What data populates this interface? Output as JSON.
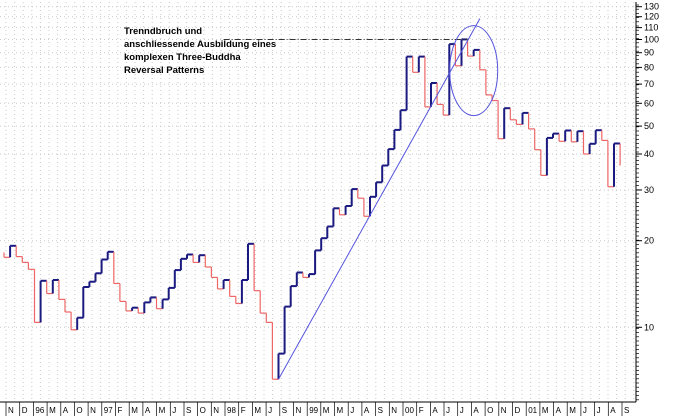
{
  "chart_data": {
    "type": "line",
    "subtype": "three-line-break (kagi-style step chart)",
    "title": "",
    "xlabel": "",
    "ylabel": "",
    "y_scale": "log",
    "ylim": [
      5.5,
      135
    ],
    "y_ticks": [
      10,
      20,
      30,
      40,
      50,
      60,
      70,
      80,
      90,
      100,
      110,
      120,
      130
    ],
    "y_tick_labels": [
      "10",
      "20",
      "30",
      "40",
      "50",
      "60",
      "70",
      "80",
      "90",
      "100",
      "110",
      "120",
      "130"
    ],
    "x_tick_labels": [
      "N",
      "D",
      "96",
      "M",
      "A",
      "O",
      "N",
      "97",
      "F",
      "M",
      "A",
      "M",
      "J",
      "S",
      "O",
      "N",
      "98",
      "F",
      "M",
      "J",
      "S",
      "N",
      "99",
      "M",
      "M",
      "J",
      "A",
      "S",
      "N",
      "00",
      "F",
      "A",
      "J",
      "J",
      "A",
      "O",
      "N",
      "D",
      "01",
      "M",
      "A",
      "M",
      "J",
      "J",
      "A",
      "S"
    ],
    "grid": true,
    "colors": {
      "up": "#1a1a80",
      "down": "#ee6666",
      "trendline": "#5555dd",
      "circle": "#5555dd"
    },
    "series": [
      {
        "bars": [
          {
            "open": 18.2,
            "close": 17.5,
            "dir": "down"
          },
          {
            "open": 17.5,
            "close": 19.2,
            "dir": "up"
          },
          {
            "open": 19.2,
            "close": 17.6,
            "dir": "down"
          },
          {
            "open": 17.6,
            "close": 16.8,
            "dir": "down"
          },
          {
            "open": 16.8,
            "close": 15.9,
            "dir": "down"
          },
          {
            "open": 15.9,
            "close": 10.4,
            "dir": "down"
          },
          {
            "open": 10.4,
            "close": 14.5,
            "dir": "up"
          },
          {
            "open": 14.5,
            "close": 13.1,
            "dir": "down"
          },
          {
            "open": 13.1,
            "close": 14.6,
            "dir": "up"
          },
          {
            "open": 14.6,
            "close": 12.5,
            "dir": "down"
          },
          {
            "open": 12.5,
            "close": 11.3,
            "dir": "down"
          },
          {
            "open": 11.3,
            "close": 9.8,
            "dir": "down"
          },
          {
            "open": 9.8,
            "close": 10.8,
            "dir": "up"
          },
          {
            "open": 10.8,
            "close": 13.8,
            "dir": "up"
          },
          {
            "open": 13.8,
            "close": 14.4,
            "dir": "up"
          },
          {
            "open": 14.4,
            "close": 15.4,
            "dir": "up"
          },
          {
            "open": 15.4,
            "close": 17.2,
            "dir": "up"
          },
          {
            "open": 17.2,
            "close": 18.3,
            "dir": "up"
          },
          {
            "open": 18.3,
            "close": 14.2,
            "dir": "down"
          },
          {
            "open": 14.2,
            "close": 12.3,
            "dir": "down"
          },
          {
            "open": 12.3,
            "close": 11.4,
            "dir": "down"
          },
          {
            "open": 11.4,
            "close": 11.7,
            "dir": "up"
          },
          {
            "open": 11.7,
            "close": 11.2,
            "dir": "down"
          },
          {
            "open": 11.2,
            "close": 12.2,
            "dir": "up"
          },
          {
            "open": 12.2,
            "close": 12.7,
            "dir": "up"
          },
          {
            "open": 12.7,
            "close": 11.6,
            "dir": "down"
          },
          {
            "open": 11.6,
            "close": 12.5,
            "dir": "up"
          },
          {
            "open": 12.5,
            "close": 13.7,
            "dir": "up"
          },
          {
            "open": 13.7,
            "close": 15.8,
            "dir": "up"
          },
          {
            "open": 15.8,
            "close": 17.3,
            "dir": "up"
          },
          {
            "open": 17.3,
            "close": 17.9,
            "dir": "up"
          },
          {
            "open": 17.9,
            "close": 16.8,
            "dir": "down"
          },
          {
            "open": 16.8,
            "close": 17.8,
            "dir": "up"
          },
          {
            "open": 17.8,
            "close": 16.2,
            "dir": "down"
          },
          {
            "open": 16.2,
            "close": 14.9,
            "dir": "down"
          },
          {
            "open": 14.9,
            "close": 13.6,
            "dir": "down"
          },
          {
            "open": 13.6,
            "close": 14.6,
            "dir": "up"
          },
          {
            "open": 14.6,
            "close": 12.8,
            "dir": "down"
          },
          {
            "open": 12.8,
            "close": 12.1,
            "dir": "down"
          },
          {
            "open": 12.1,
            "close": 14.6,
            "dir": "up"
          },
          {
            "open": 14.6,
            "close": 19.5,
            "dir": "up"
          },
          {
            "open": 19.5,
            "close": 13.4,
            "dir": "down"
          },
          {
            "open": 13.4,
            "close": 11.2,
            "dir": "down"
          },
          {
            "open": 11.2,
            "close": 10.4,
            "dir": "down"
          },
          {
            "open": 10.4,
            "close": 6.6,
            "dir": "down"
          },
          {
            "open": 6.6,
            "close": 8.1,
            "dir": "up"
          },
          {
            "open": 8.1,
            "close": 11.8,
            "dir": "up"
          },
          {
            "open": 11.8,
            "close": 13.9,
            "dir": "up"
          },
          {
            "open": 13.9,
            "close": 15.5,
            "dir": "up"
          },
          {
            "open": 15.5,
            "close": 14.9,
            "dir": "down"
          },
          {
            "open": 14.9,
            "close": 15.3,
            "dir": "up"
          },
          {
            "open": 15.3,
            "close": 18.5,
            "dir": "up"
          },
          {
            "open": 18.5,
            "close": 20.4,
            "dir": "up"
          },
          {
            "open": 20.4,
            "close": 22.4,
            "dir": "up"
          },
          {
            "open": 22.4,
            "close": 25.9,
            "dir": "up"
          },
          {
            "open": 25.9,
            "close": 24.6,
            "dir": "down"
          },
          {
            "open": 24.6,
            "close": 26.4,
            "dir": "up"
          },
          {
            "open": 26.4,
            "close": 30.2,
            "dir": "up"
          },
          {
            "open": 30.2,
            "close": 28.1,
            "dir": "down"
          },
          {
            "open": 28.1,
            "close": 24.3,
            "dir": "down"
          },
          {
            "open": 24.3,
            "close": 28.4,
            "dir": "up"
          },
          {
            "open": 28.4,
            "close": 31.9,
            "dir": "up"
          },
          {
            "open": 31.9,
            "close": 36.5,
            "dir": "up"
          },
          {
            "open": 36.5,
            "close": 41.6,
            "dir": "up"
          },
          {
            "open": 41.6,
            "close": 48.5,
            "dir": "up"
          },
          {
            "open": 48.5,
            "close": 56.8,
            "dir": "up"
          },
          {
            "open": 56.8,
            "close": 87.2,
            "dir": "up"
          },
          {
            "open": 87.2,
            "close": 76.9,
            "dir": "down"
          },
          {
            "open": 76.9,
            "close": 87.2,
            "dir": "up"
          },
          {
            "open": 87.2,
            "close": 58.3,
            "dir": "down"
          },
          {
            "open": 58.3,
            "close": 70.6,
            "dir": "up"
          },
          {
            "open": 70.6,
            "close": 59.5,
            "dir": "down"
          },
          {
            "open": 59.5,
            "close": 54.6,
            "dir": "down"
          },
          {
            "open": 54.6,
            "close": 96.4,
            "dir": "up"
          },
          {
            "open": 96.4,
            "close": 81.0,
            "dir": "down"
          },
          {
            "open": 81.0,
            "close": 100.1,
            "dir": "up"
          },
          {
            "open": 100.1,
            "close": 87.6,
            "dir": "down"
          },
          {
            "open": 87.6,
            "close": 92.0,
            "dir": "up"
          },
          {
            "open": 92.0,
            "close": 78.5,
            "dir": "down"
          },
          {
            "open": 78.5,
            "close": 64.2,
            "dir": "down"
          },
          {
            "open": 64.2,
            "close": 61.4,
            "dir": "down"
          },
          {
            "open": 61.4,
            "close": 45.2,
            "dir": "down"
          },
          {
            "open": 45.2,
            "close": 57.7,
            "dir": "up"
          },
          {
            "open": 57.7,
            "close": 52.6,
            "dir": "down"
          },
          {
            "open": 52.6,
            "close": 50.7,
            "dir": "down"
          },
          {
            "open": 50.7,
            "close": 55.6,
            "dir": "up"
          },
          {
            "open": 55.6,
            "close": 48.9,
            "dir": "down"
          },
          {
            "open": 48.9,
            "close": 41.4,
            "dir": "down"
          },
          {
            "open": 41.4,
            "close": 33.7,
            "dir": "down"
          },
          {
            "open": 33.7,
            "close": 45.5,
            "dir": "up"
          },
          {
            "open": 45.5,
            "close": 47.1,
            "dir": "up"
          },
          {
            "open": 47.1,
            "close": 44.3,
            "dir": "down"
          },
          {
            "open": 44.3,
            "close": 48.3,
            "dir": "up"
          },
          {
            "open": 48.3,
            "close": 44.1,
            "dir": "down"
          },
          {
            "open": 44.1,
            "close": 48.0,
            "dir": "up"
          },
          {
            "open": 48.0,
            "close": 40.0,
            "dir": "down"
          },
          {
            "open": 40.0,
            "close": 43.4,
            "dir": "up"
          },
          {
            "open": 43.4,
            "close": 48.4,
            "dir": "up"
          },
          {
            "open": 48.4,
            "close": 44.6,
            "dir": "down"
          },
          {
            "open": 44.6,
            "close": 30.8,
            "dir": "down"
          },
          {
            "open": 30.8,
            "close": 43.5,
            "dir": "up"
          },
          {
            "open": 43.5,
            "close": 36.5,
            "dir": "down"
          }
        ]
      }
    ],
    "annotations": {
      "text_lines": [
        "Trenndbruch und",
        "anschliessende Ausbildung eines",
        "komplexen Three-Buddha",
        "Reversal Patterns"
      ],
      "trendline": {
        "from": {
          "bar": 45,
          "value": 6.6
        },
        "to": {
          "bar": 78,
          "value": 118
        }
      },
      "dashdot_level": {
        "value": 100,
        "from_bar": 36,
        "to_bar": 76
      },
      "circle": {
        "center_bar": 77,
        "center_value": 78,
        "note": "highlights reversal pattern"
      }
    }
  }
}
